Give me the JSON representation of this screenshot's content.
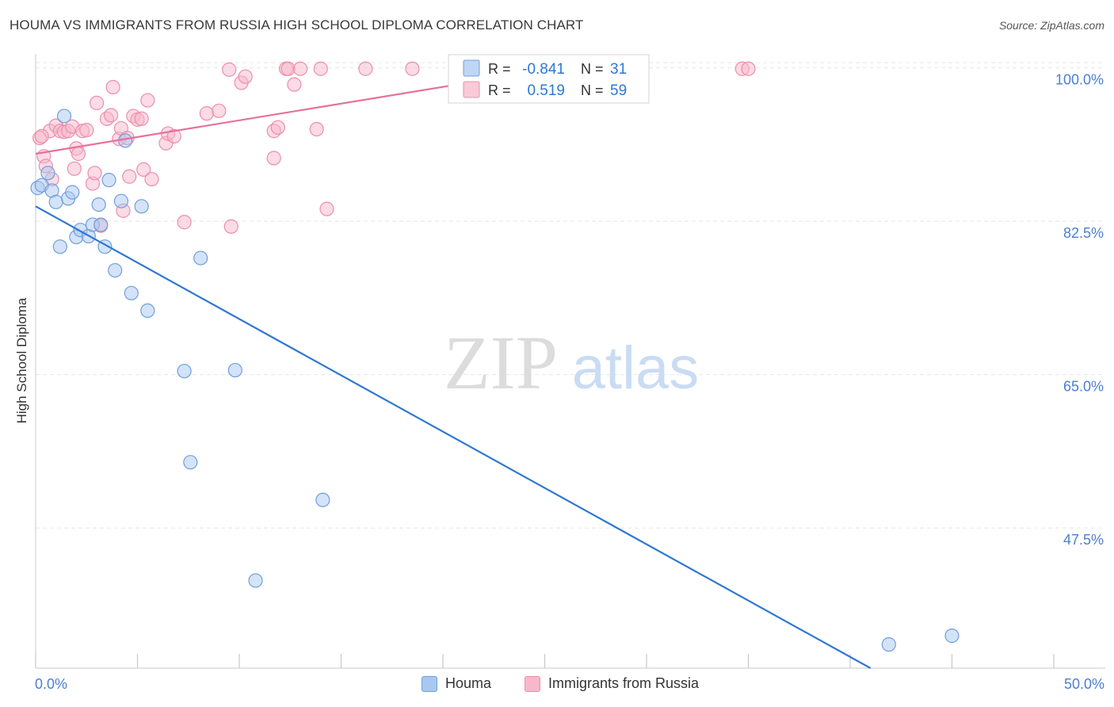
{
  "title": "HOUMA VS IMMIGRANTS FROM RUSSIA HIGH SCHOOL DIPLOMA CORRELATION CHART",
  "source": "Source: ZipAtlas.com",
  "watermark": {
    "zip": "ZIP",
    "atlas": "atlas"
  },
  "colors": {
    "houma_fill": "#a9c8f0",
    "houma_stroke": "#6f9fdc",
    "houma_line": "#2f78d2",
    "russia_fill": "#f7b8cb",
    "russia_stroke": "#ec8eab",
    "russia_line": "#e8709a",
    "tick_text": "#4a7fd4",
    "grid": "#e6e6e6"
  },
  "legend": {
    "rows": [
      {
        "r_label": "R =",
        "r_value": "-0.841",
        "n_label": "N =",
        "n_value": "31"
      },
      {
        "r_label": "R =",
        "r_value": "0.519",
        "n_label": "N =",
        "n_value": "59"
      }
    ]
  },
  "chart_data": {
    "type": "scatter",
    "title": "HOUMA VS IMMIGRANTS FROM RUSSIA HIGH SCHOOL DIPLOMA CORRELATION CHART",
    "xlabel": "",
    "ylabel": "High School Diploma",
    "xlim": [
      0,
      50
    ],
    "ylim": [
      31.5,
      102.5
    ],
    "x_tick_labels": [
      "0.0%",
      "50.0%"
    ],
    "y_ticks": [
      47.5,
      65.0,
      82.5,
      100.0
    ],
    "y_tick_labels": [
      "47.5%",
      "65.0%",
      "82.5%",
      "100.0%"
    ],
    "grid": true,
    "legend_position": "bottom",
    "series": [
      {
        "name": "Houma",
        "r": -0.841,
        "n": 31,
        "trend": {
          "x": [
            0,
            41
          ],
          "y": [
            84.2,
            31.5
          ]
        },
        "points": [
          [
            0.1,
            86.3
          ],
          [
            0.3,
            86.6
          ],
          [
            0.6,
            88.0
          ],
          [
            0.8,
            86.0
          ],
          [
            1.0,
            84.7
          ],
          [
            1.2,
            79.6
          ],
          [
            1.4,
            94.5
          ],
          [
            1.6,
            85.1
          ],
          [
            1.8,
            85.8
          ],
          [
            2.0,
            80.7
          ],
          [
            2.2,
            81.5
          ],
          [
            2.6,
            80.8
          ],
          [
            2.8,
            82.1
          ],
          [
            3.1,
            84.4
          ],
          [
            3.2,
            82.1
          ],
          [
            3.4,
            79.6
          ],
          [
            3.6,
            87.2
          ],
          [
            3.9,
            76.9
          ],
          [
            4.2,
            84.8
          ],
          [
            4.4,
            91.7
          ],
          [
            4.7,
            74.3
          ],
          [
            5.2,
            84.2
          ],
          [
            5.5,
            72.3
          ],
          [
            7.3,
            65.4
          ],
          [
            7.6,
            55.0
          ],
          [
            8.1,
            78.3
          ],
          [
            9.8,
            65.5
          ],
          [
            10.8,
            41.5
          ],
          [
            14.1,
            50.7
          ],
          [
            41.9,
            34.2
          ],
          [
            45.0,
            35.2
          ]
        ]
      },
      {
        "name": "Immigrants from Russia",
        "r": 0.519,
        "n": 59,
        "trend": {
          "x": [
            0,
            27
          ],
          "y": [
            90.2,
            100.5
          ]
        },
        "points": [
          [
            0.2,
            92.0
          ],
          [
            0.4,
            89.9
          ],
          [
            0.5,
            88.8
          ],
          [
            0.7,
            92.8
          ],
          [
            0.8,
            87.3
          ],
          [
            1.0,
            93.4
          ],
          [
            1.2,
            92.8
          ],
          [
            1.4,
            92.7
          ],
          [
            1.6,
            92.8
          ],
          [
            1.8,
            93.3
          ],
          [
            1.9,
            88.5
          ],
          [
            2.0,
            90.8
          ],
          [
            2.1,
            90.2
          ],
          [
            2.3,
            92.8
          ],
          [
            2.5,
            92.9
          ],
          [
            2.8,
            86.8
          ],
          [
            2.9,
            88.0
          ],
          [
            3.0,
            96.0
          ],
          [
            3.2,
            82.0
          ],
          [
            3.5,
            94.2
          ],
          [
            3.7,
            94.6
          ],
          [
            3.8,
            97.8
          ],
          [
            4.1,
            91.9
          ],
          [
            4.2,
            93.1
          ],
          [
            4.3,
            83.7
          ],
          [
            4.5,
            92.0
          ],
          [
            4.6,
            87.6
          ],
          [
            4.8,
            94.5
          ],
          [
            5.0,
            94.1
          ],
          [
            5.2,
            94.2
          ],
          [
            5.3,
            88.4
          ],
          [
            5.5,
            96.3
          ],
          [
            5.7,
            87.3
          ],
          [
            6.4,
            91.4
          ],
          [
            6.5,
            92.5
          ],
          [
            6.8,
            92.2
          ],
          [
            7.3,
            82.4
          ],
          [
            8.4,
            94.8
          ],
          [
            9.0,
            95.1
          ],
          [
            9.6,
            81.9
          ],
          [
            9.5,
            99.8
          ],
          [
            10.1,
            98.3
          ],
          [
            10.3,
            99.0
          ],
          [
            11.7,
            89.7
          ],
          [
            11.7,
            92.8
          ],
          [
            11.9,
            93.2
          ],
          [
            12.3,
            99.9
          ],
          [
            12.4,
            99.9
          ],
          [
            12.7,
            98.1
          ],
          [
            13.0,
            99.9
          ],
          [
            13.8,
            93.0
          ],
          [
            14.0,
            99.9
          ],
          [
            14.3,
            83.9
          ],
          [
            16.2,
            99.9
          ],
          [
            18.5,
            99.9
          ],
          [
            27.1,
            99.9
          ],
          [
            34.7,
            99.9
          ],
          [
            35.0,
            99.9
          ],
          [
            0.3,
            92.2
          ]
        ]
      }
    ]
  },
  "bottom_legend": {
    "houma": "Houma",
    "russia": "Immigrants from Russia"
  }
}
